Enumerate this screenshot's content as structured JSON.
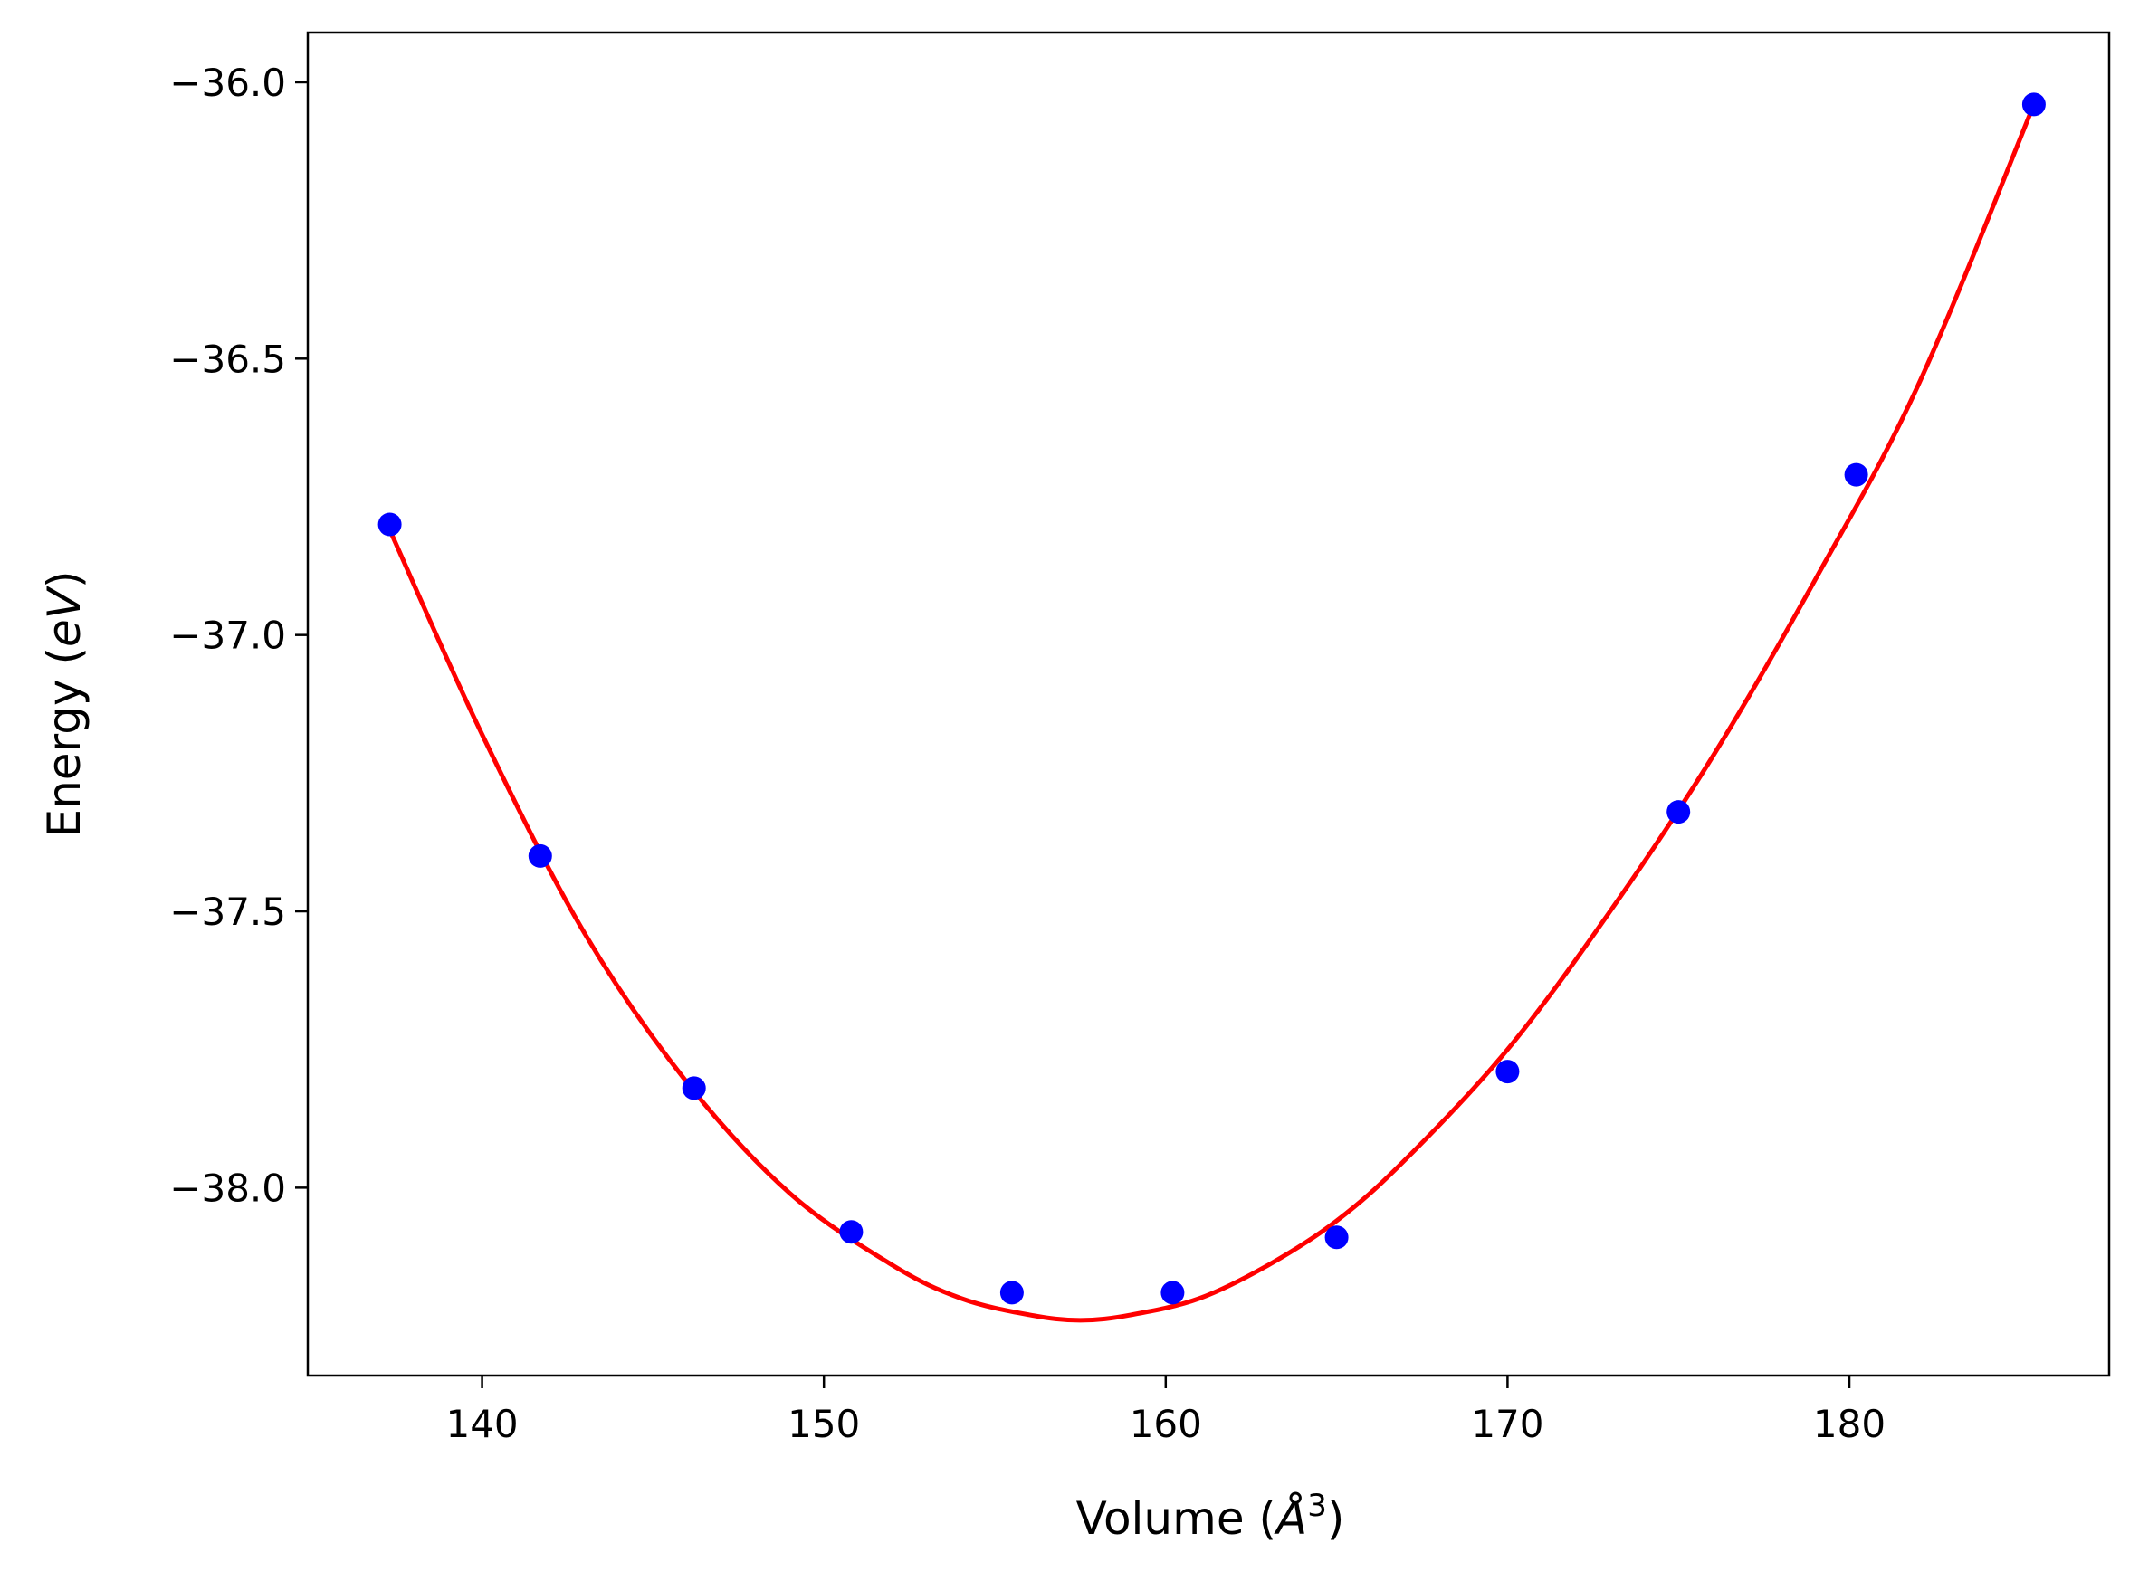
{
  "chart_data": {
    "type": "scatter",
    "xlabel": "Volume (Å³)",
    "xlabel_main": "Volume (",
    "xlabel_unit": "Å",
    "xlabel_sup": "3",
    "xlabel_close": ")",
    "ylabel": "Energy (eV)",
    "ylabel_main": "Energy (",
    "ylabel_unit": "eV",
    "ylabel_close": ")",
    "xlim": [
      134.9,
      187.6
    ],
    "ylim": [
      -38.34,
      -35.91
    ],
    "xticks": [
      140,
      150,
      160,
      170,
      180
    ],
    "xtick_labels": [
      "140",
      "150",
      "160",
      "170",
      "180"
    ],
    "yticks": [
      -38.0,
      -37.5,
      -37.0,
      -36.5,
      -36.0
    ],
    "ytick_labels": [
      "−38.0",
      "−37.5",
      "−37.0",
      "−36.5",
      "−36.0"
    ],
    "grid": false,
    "series": [
      {
        "role": "points",
        "color": "#0000ff",
        "x": [
          137.3,
          141.7,
          146.2,
          150.8,
          155.5,
          160.2,
          165.0,
          170.0,
          175.0,
          180.2,
          185.4
        ],
        "y": [
          -36.8,
          -37.4,
          -37.82,
          -38.08,
          -38.19,
          -38.19,
          -38.09,
          -37.79,
          -37.32,
          -36.71,
          -36.04
        ]
      },
      {
        "role": "fit-curve",
        "color": "#ff0000",
        "x": [
          137.3,
          140.0,
          143.0,
          146.0,
          149.0,
          152.0,
          154.0,
          156.0,
          157.5,
          159.0,
          161.0,
          163.0,
          165.0,
          167.0,
          170.0,
          173.0,
          176.0,
          179.0,
          182.0,
          185.4
        ],
        "y": [
          -36.81,
          -37.18,
          -37.54,
          -37.81,
          -38.01,
          -38.14,
          -38.2,
          -38.23,
          -38.24,
          -38.23,
          -38.2,
          -38.14,
          -38.06,
          -37.95,
          -37.75,
          -37.5,
          -37.22,
          -36.9,
          -36.55,
          -36.04
        ]
      }
    ]
  }
}
